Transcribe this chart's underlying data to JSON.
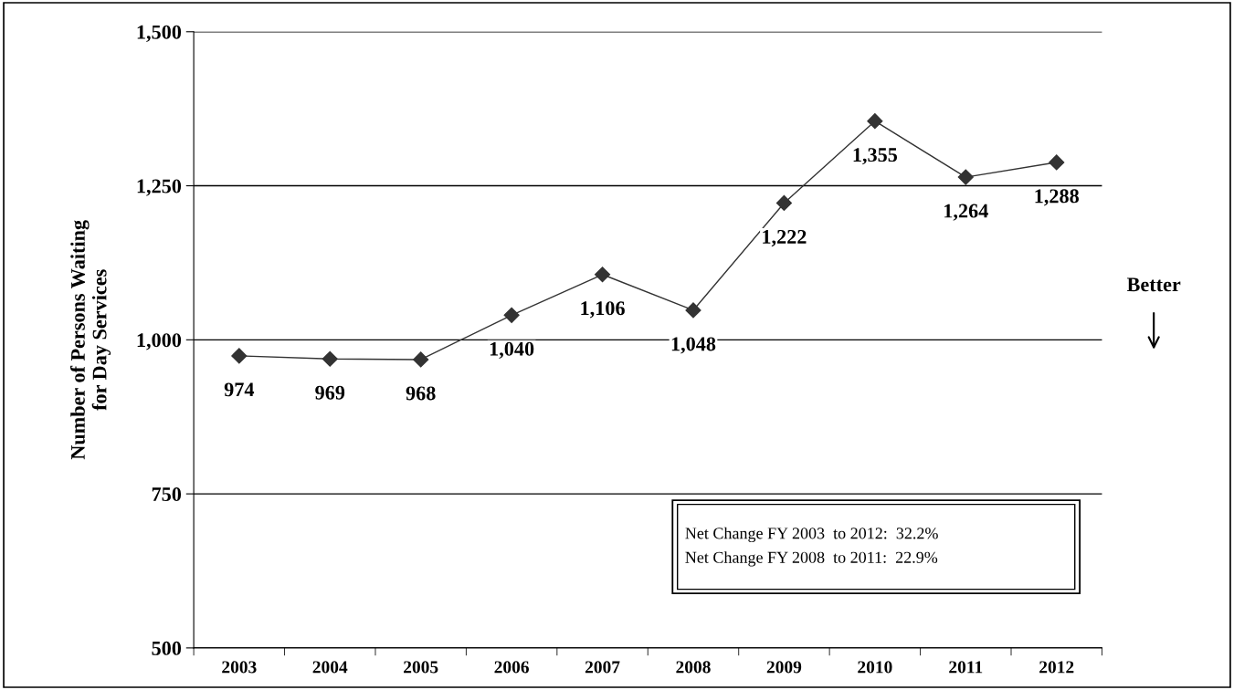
{
  "chart_data": {
    "type": "line",
    "ylabel": "Number of Persons Waiting\nfor Day Services",
    "categories": [
      "2003",
      "2004",
      "2005",
      "2006",
      "2007",
      "2008",
      "2009",
      "2010",
      "2011",
      "2012"
    ],
    "series": [
      {
        "color": "#333333",
        "values": [
          974,
          969,
          968,
          1040,
          1106,
          1048,
          1222,
          1355,
          1264,
          1288
        ]
      }
    ],
    "ylim": [
      500,
      1500
    ],
    "yticks": [
      {
        "value": 500,
        "label": "500"
      },
      {
        "value": 750,
        "label": "750"
      },
      {
        "value": 1000,
        "label": "1,000"
      },
      {
        "value": 1250,
        "label": "1,250"
      },
      {
        "value": 1500,
        "label": "1,500"
      }
    ],
    "value_labels": [
      "974",
      "969",
      "968",
      "1,040",
      "1,106",
      "1,048",
      "1,222",
      "1,355",
      "1,264",
      "1,288"
    ],
    "grid": "y",
    "marker": "diamond",
    "line_style": "solid",
    "annotations": [
      "Better",
      "Net Change FY 2003  to 2012:  32.2%",
      "Net Change FY 2008  to 2011:  22.9%"
    ]
  }
}
